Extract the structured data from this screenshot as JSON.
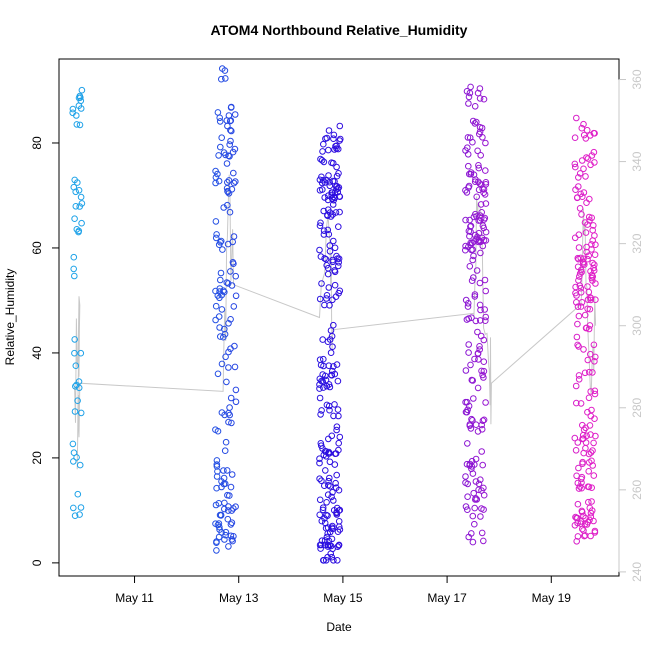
{
  "chart_data": {
    "type": "scatter",
    "title": "ATOM4 Northbound Relative_Humidity",
    "xlabel": "Date",
    "ylabel": "Relative_Humidity",
    "x_ticks": [
      "May 11",
      "May 13",
      "May 15",
      "May 17",
      "May 19"
    ],
    "y_ticks": [
      0,
      20,
      40,
      60,
      80
    ],
    "y2_ticks": [
      240,
      260,
      280,
      300,
      320,
      340,
      360
    ],
    "xlim": [
      "2014-05-09 13:00",
      "2014-05-20 07:00"
    ],
    "ylim": [
      -2.5,
      96
    ],
    "y2lim": [
      239,
      365
    ],
    "colors": {
      "point_start": "#1fa3e8",
      "point_mid": "#2a0de0",
      "point_end": "#e020c8",
      "line": "#c8c8c8",
      "axis": "#000000",
      "y2_axis": "#c8c8c8"
    },
    "clusters": [
      {
        "date": "May 10",
        "center_day": 9.9,
        "spread_day": 0.09,
        "n": 50,
        "anchors": [
          10,
          12,
          19,
          21,
          26,
          28,
          30,
          33,
          35,
          38,
          40,
          41,
          45,
          56,
          58,
          63,
          64,
          65,
          67,
          68,
          70,
          71,
          73,
          77,
          80,
          83,
          85,
          87,
          89,
          92
        ]
      },
      {
        "date": "May 12-13",
        "center_day": 12.75,
        "spread_day": 0.2,
        "n": 160,
        "anchors": [
          2.5,
          3,
          4,
          5,
          6,
          7,
          8,
          9,
          10,
          11,
          12,
          13,
          14,
          15,
          16,
          17,
          18,
          19,
          23,
          27,
          30,
          33,
          36,
          39,
          40,
          42,
          45,
          47,
          48,
          50,
          52,
          55,
          57,
          60,
          62,
          65,
          67,
          70,
          72,
          73,
          75,
          77,
          79,
          81,
          83,
          84,
          86,
          94
        ]
      },
      {
        "date": "May 14-15",
        "center_day": 14.75,
        "spread_day": 0.2,
        "n": 240,
        "anchors": [
          1.5,
          3,
          4,
          5,
          6,
          7,
          8,
          9,
          10,
          11,
          12,
          13,
          14,
          15,
          16,
          18,
          20,
          22,
          24,
          26,
          28,
          30,
          32,
          34,
          35,
          36,
          38,
          42,
          46,
          50,
          52,
          55,
          57,
          60,
          62,
          64,
          66,
          68,
          70,
          71,
          72,
          74,
          76,
          78,
          80,
          82
        ]
      },
      {
        "date": "May 17-18",
        "center_day": 17.55,
        "spread_day": 0.2,
        "n": 200,
        "anchors": [
          4,
          6,
          8,
          10,
          12,
          13,
          14,
          17,
          19,
          21,
          25,
          27,
          28,
          30,
          32,
          35,
          37,
          40,
          42,
          45,
          48,
          50,
          52,
          55,
          57,
          59,
          60,
          61,
          62,
          63,
          64,
          65,
          67,
          70,
          72,
          74,
          76,
          80,
          83,
          86,
          88,
          89
        ]
      },
      {
        "date": "May 19-20",
        "center_day": 19.65,
        "spread_day": 0.2,
        "n": 200,
        "anchors": [
          5,
          6,
          7,
          8,
          10,
          12,
          14,
          16,
          18,
          20,
          22,
          24,
          26,
          28,
          30,
          32,
          35,
          38,
          40,
          42,
          45,
          48,
          50,
          52,
          54,
          55,
          56,
          57,
          58,
          60,
          62,
          64,
          66,
          68,
          70,
          72,
          75,
          77,
          79,
          82,
          84
        ]
      }
    ],
    "wind_direction_line": [
      {
        "day": 9.85,
        "value": 285
      },
      {
        "day": 9.95,
        "value": 305
      },
      {
        "day": 9.9,
        "value": 265
      },
      {
        "day": 9.95,
        "value": 286
      },
      {
        "day": 12.7,
        "value": 284
      },
      {
        "day": 12.8,
        "value": 330
      },
      {
        "day": 12.9,
        "value": 310
      },
      {
        "day": 14.55,
        "value": 302
      },
      {
        "day": 14.75,
        "value": 320
      },
      {
        "day": 14.8,
        "value": 299
      },
      {
        "day": 17.5,
        "value": 303
      },
      {
        "day": 17.6,
        "value": 330
      },
      {
        "day": 17.8,
        "value": 290
      },
      {
        "day": 17.85,
        "value": 286
      },
      {
        "day": 19.55,
        "value": 305
      },
      {
        "day": 19.65,
        "value": 325
      },
      {
        "day": 19.75,
        "value": 285
      },
      {
        "day": 19.85,
        "value": 300
      }
    ]
  }
}
